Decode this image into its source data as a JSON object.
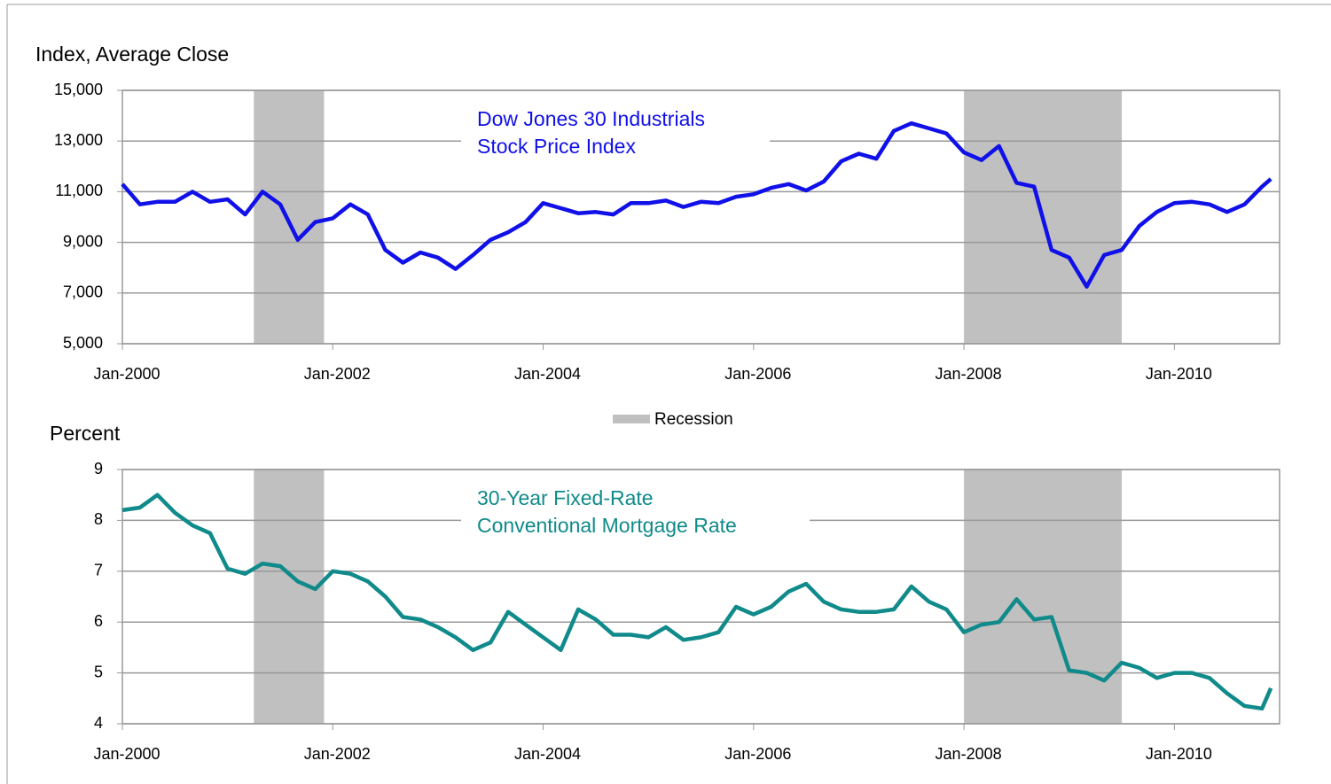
{
  "chart_data": [
    {
      "type": "line",
      "y_label": "Index, Average Close",
      "annotation": [
        "Dow Jones 30 Industrials",
        "Stock Price Index"
      ],
      "recession_label": "Recession",
      "recession_color": "#c0c0c0",
      "recessions": [
        [
          2001.25,
          2001.917
        ],
        [
          2008.0,
          2009.5
        ]
      ],
      "x": [
        2000,
        2000.167,
        2000.333,
        2000.5,
        2000.667,
        2000.833,
        2001,
        2001.167,
        2001.333,
        2001.5,
        2001.667,
        2001.833,
        2002,
        2002.167,
        2002.333,
        2002.5,
        2002.667,
        2002.833,
        2003,
        2003.167,
        2003.333,
        2003.5,
        2003.667,
        2003.833,
        2004,
        2004.167,
        2004.333,
        2004.5,
        2004.667,
        2004.833,
        2005,
        2005.167,
        2005.333,
        2005.5,
        2005.667,
        2005.833,
        2006,
        2006.167,
        2006.333,
        2006.5,
        2006.667,
        2006.833,
        2007,
        2007.167,
        2007.333,
        2007.5,
        2007.667,
        2007.833,
        2008,
        2008.167,
        2008.333,
        2008.5,
        2008.667,
        2008.833,
        2009,
        2009.167,
        2009.333,
        2009.5,
        2009.667,
        2009.833,
        2010,
        2010.167,
        2010.333,
        2010.5,
        2010.667,
        2010.833,
        2010.917
      ],
      "series": [
        {
          "color": "#1010e8",
          "values": [
            11300,
            10500,
            10600,
            10600,
            11000,
            10600,
            10700,
            10100,
            11000,
            10500,
            9100,
            9800,
            9950,
            10500,
            10100,
            8700,
            8200,
            8600,
            8400,
            7950,
            8500,
            9100,
            9400,
            9800,
            10550,
            10350,
            10150,
            10200,
            10100,
            10550,
            10550,
            10650,
            10400,
            10600,
            10550,
            10800,
            10900,
            11150,
            11300,
            11050,
            11400,
            12200,
            12500,
            12300,
            13400,
            13700,
            13500,
            13300,
            12550,
            12250,
            12800,
            11350,
            11200,
            8700,
            8400,
            7250,
            8500,
            8700,
            9650,
            10200,
            10550,
            10600,
            10500,
            10200,
            10500,
            11200,
            11500
          ]
        }
      ],
      "xlim": [
        2000,
        2011
      ],
      "ylim": [
        5000,
        15000
      ],
      "yticks": [
        {
          "value": 5000,
          "label": "5,000"
        },
        {
          "value": 7000,
          "label": "7,000"
        },
        {
          "value": 9000,
          "label": "9,000"
        },
        {
          "value": 11000,
          "label": "11,000"
        },
        {
          "value": 13000,
          "label": "13,000"
        },
        {
          "value": 15000,
          "label": "15,000"
        }
      ],
      "xticks": [
        {
          "value": 2000,
          "label": "Jan-2000"
        },
        {
          "value": 2002,
          "label": "Jan-2002"
        },
        {
          "value": 2004,
          "label": "Jan-2004"
        },
        {
          "value": 2006,
          "label": "Jan-2006"
        },
        {
          "value": 2008,
          "label": "Jan-2008"
        },
        {
          "value": 2010,
          "label": "Jan-2010"
        }
      ],
      "grid": true
    },
    {
      "type": "line",
      "y_label": "Percent",
      "annotation": [
        "30-Year Fixed-Rate",
        "Conventional Mortgage Rate"
      ],
      "recession_color": "#c0c0c0",
      "recessions": [
        [
          2001.25,
          2001.917
        ],
        [
          2008.0,
          2009.5
        ]
      ],
      "x": [
        2000,
        2000.167,
        2000.333,
        2000.5,
        2000.667,
        2000.833,
        2001,
        2001.167,
        2001.333,
        2001.5,
        2001.667,
        2001.833,
        2002,
        2002.167,
        2002.333,
        2002.5,
        2002.667,
        2002.833,
        2003,
        2003.167,
        2003.333,
        2003.5,
        2003.667,
        2003.833,
        2004,
        2004.167,
        2004.333,
        2004.5,
        2004.667,
        2004.833,
        2005,
        2005.167,
        2005.333,
        2005.5,
        2005.667,
        2005.833,
        2006,
        2006.167,
        2006.333,
        2006.5,
        2006.667,
        2006.833,
        2007,
        2007.167,
        2007.333,
        2007.5,
        2007.667,
        2007.833,
        2008,
        2008.167,
        2008.333,
        2008.5,
        2008.667,
        2008.833,
        2009,
        2009.167,
        2009.333,
        2009.5,
        2009.667,
        2009.833,
        2010,
        2010.167,
        2010.333,
        2010.5,
        2010.667,
        2010.833,
        2010.917
      ],
      "series": [
        {
          "color": "#108a8a",
          "values": [
            8.2,
            8.25,
            8.5,
            8.15,
            7.9,
            7.75,
            7.05,
            6.95,
            7.15,
            7.1,
            6.8,
            6.65,
            7.0,
            6.95,
            6.8,
            6.5,
            6.1,
            6.05,
            5.9,
            5.7,
            5.45,
            5.6,
            6.2,
            5.95,
            5.7,
            5.45,
            6.25,
            6.05,
            5.75,
            5.75,
            5.7,
            5.9,
            5.65,
            5.7,
            5.8,
            6.3,
            6.15,
            6.3,
            6.6,
            6.75,
            6.4,
            6.25,
            6.2,
            6.2,
            6.25,
            6.7,
            6.4,
            6.25,
            5.8,
            5.95,
            6.0,
            6.45,
            6.05,
            6.1,
            5.05,
            5.0,
            4.85,
            5.2,
            5.1,
            4.9,
            5.0,
            5.0,
            4.9,
            4.6,
            4.35,
            4.3,
            4.7
          ]
        }
      ],
      "xlim": [
        2000,
        2011
      ],
      "ylim": [
        4,
        9
      ],
      "yticks": [
        4,
        5,
        6,
        7,
        8,
        9
      ],
      "xticks": [
        {
          "value": 2000,
          "label": "Jan-2000"
        },
        {
          "value": 2002,
          "label": "Jan-2002"
        },
        {
          "value": 2004,
          "label": "Jan-2004"
        },
        {
          "value": 2006,
          "label": "Jan-2006"
        },
        {
          "value": 2008,
          "label": "Jan-2008"
        },
        {
          "value": 2010,
          "label": "Jan-2010"
        }
      ],
      "grid": true
    }
  ]
}
